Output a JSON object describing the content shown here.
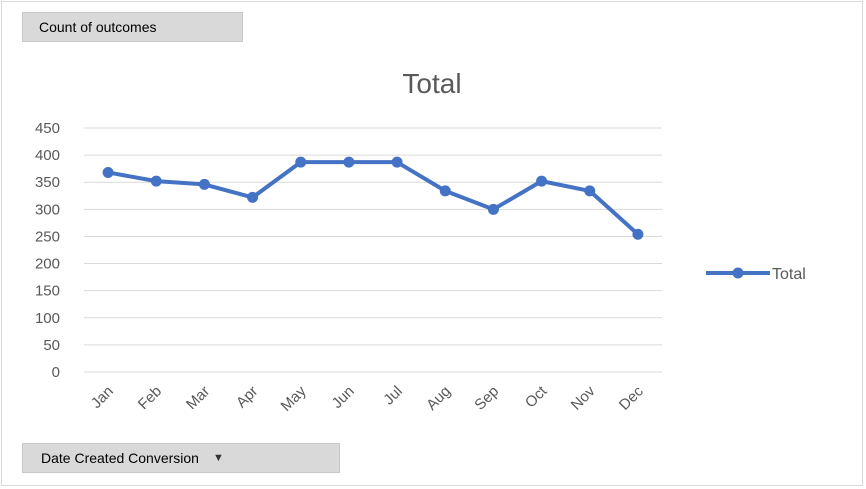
{
  "pivot": {
    "value_field_button": "Count of outcomes",
    "axis_field_button": "Date Created Conversion",
    "dropdown_icon": "triangle-down-icon"
  },
  "colors": {
    "series": "#4472c4",
    "grid": "#d9d9d9",
    "axis_text": "#595959"
  },
  "chart_data": {
    "type": "line",
    "title": "Total",
    "categories": [
      "Jan",
      "Feb",
      "Mar",
      "Apr",
      "May",
      "Jun",
      "Jul",
      "Aug",
      "Sep",
      "Oct",
      "Nov",
      "Dec"
    ],
    "series": [
      {
        "name": "Total",
        "values": [
          368,
          352,
          346,
          322,
          387,
          387,
          387,
          334,
          300,
          352,
          334,
          254
        ]
      }
    ],
    "ylim": [
      0,
      450
    ],
    "yticks": [
      0,
      50,
      100,
      150,
      200,
      250,
      300,
      350,
      400,
      450
    ],
    "grid": true,
    "legend": "right"
  }
}
